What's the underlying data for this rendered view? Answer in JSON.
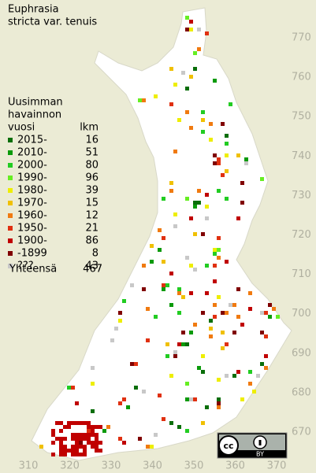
{
  "title": [
    "Euphrasia",
    "stricta var. tenuis"
  ],
  "legend": {
    "heading": [
      "Uusimman",
      "havainnon",
      "vuosi"
    ],
    "count_heading": "lkm",
    "entries": [
      {
        "label": "2015-",
        "count": 16,
        "color": "#0a6e0a"
      },
      {
        "label": "2010-",
        "count": 51,
        "color": "#0a9a0a"
      },
      {
        "label": "2000-",
        "count": 80,
        "color": "#22cc22"
      },
      {
        "label": "1990-",
        "count": 96,
        "color": "#66ee22"
      },
      {
        "label": "1980-",
        "count": 39,
        "color": "#eeee00"
      },
      {
        "label": "1970-",
        "count": 15,
        "color": "#f0c000"
      },
      {
        "label": "1960-",
        "count": 12,
        "color": "#f07a10"
      },
      {
        "label": "1950-",
        "count": 21,
        "color": "#e03010"
      },
      {
        "label": "1900-",
        "count": 86,
        "color": "#c00000"
      },
      {
        "label": "-1899",
        "count": 8,
        "color": "#800000"
      },
      {
        "label": "???",
        "count": 43,
        "color": "#c8c8c8"
      }
    ],
    "total": {
      "label": "Yhteensä",
      "count": 467
    }
  },
  "y_axis_labels": [
    770,
    760,
    750,
    740,
    730,
    720,
    710,
    700,
    690,
    680,
    670
  ],
  "x_axis_labels": [
    310,
    320,
    330,
    340,
    350,
    360,
    370
  ]
}
